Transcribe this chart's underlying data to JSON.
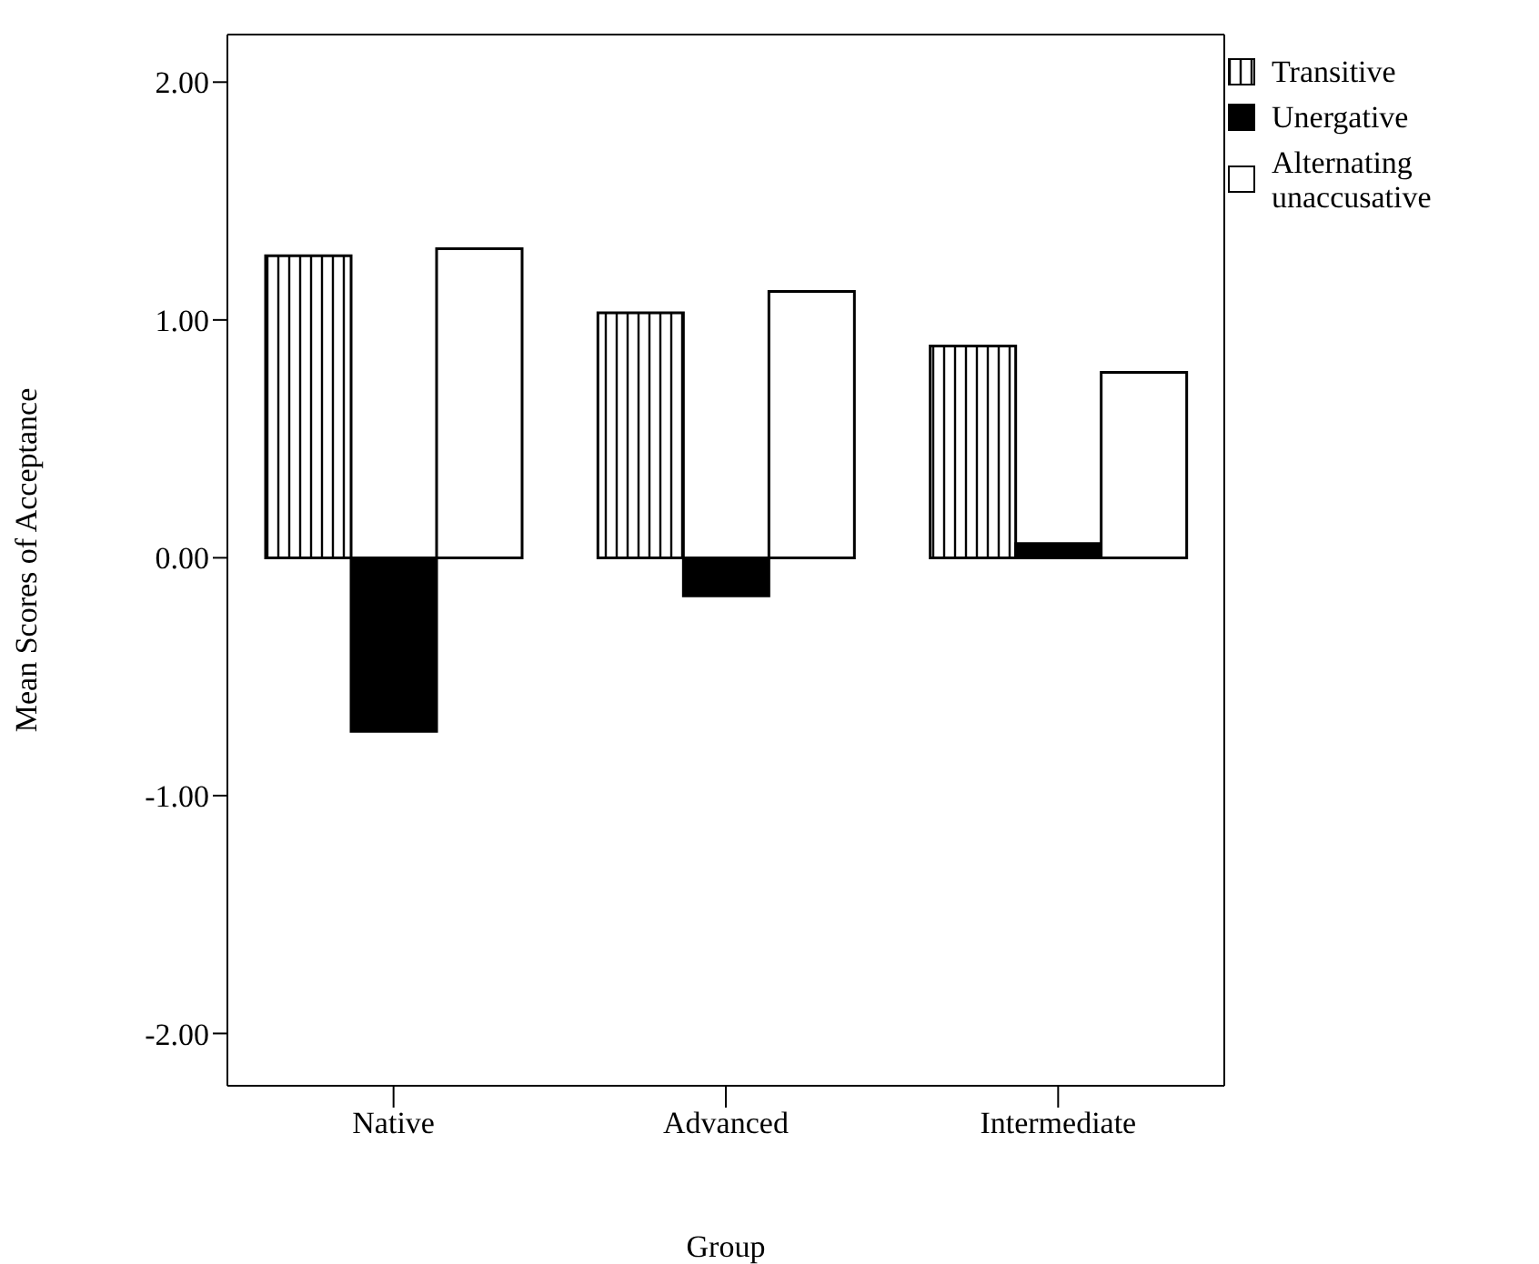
{
  "chart_data": {
    "type": "bar",
    "xlabel": "Group",
    "ylabel": "Mean Scores of Acceptance",
    "categories": [
      "Native",
      "Advanced",
      "Intermediate"
    ],
    "series": [
      {
        "name": "Transitive",
        "color": "#000000",
        "values": [
          1.27,
          1.03,
          0.89
        ]
      },
      {
        "name": "Unergative",
        "color": "#000000",
        "values": [
          -0.73,
          -0.16,
          0.06
        ]
      },
      {
        "name": "Alternating unaccusative",
        "color": "#ffffff",
        "values": [
          1.3,
          1.12,
          0.78
        ]
      }
    ],
    "ylim": [
      -2.22,
      2.2
    ],
    "yticks": [
      {
        "value": 2,
        "label": "2.00"
      },
      {
        "value": 1,
        "label": "1.00"
      },
      {
        "value": 0,
        "label": "0.00"
      },
      {
        "value": -1,
        "label": "-1.00"
      },
      {
        "value": -2,
        "label": "-2.00"
      }
    ],
    "grid": false,
    "legend": "top right"
  }
}
